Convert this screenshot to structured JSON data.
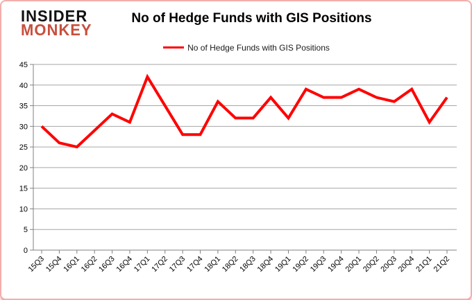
{
  "logo": {
    "line1": "INSIDER",
    "line2": "MONKEY"
  },
  "chart_data": {
    "type": "line",
    "title": "No of Hedge Funds with GIS Positions",
    "legend_label": "No of Hedge Funds with GIS Positions",
    "legend_position": "top",
    "categories": [
      "15Q3",
      "15Q4",
      "16Q1",
      "16Q2",
      "16Q3",
      "16Q4",
      "17Q1",
      "17Q2",
      "17Q3",
      "17Q4",
      "18Q1",
      "18Q2",
      "18Q3",
      "18Q4",
      "19Q1",
      "19Q2",
      "19Q3",
      "19Q4",
      "20Q1",
      "20Q2",
      "20Q3",
      "20Q4",
      "21Q1",
      "21Q2"
    ],
    "values": [
      30,
      26,
      25,
      29,
      33,
      31,
      42,
      35,
      28,
      28,
      36,
      32,
      32,
      37,
      32,
      39,
      37,
      37,
      39,
      37,
      36,
      39,
      31,
      37
    ],
    "ylim": [
      0,
      45
    ],
    "y_tick_step": 5,
    "grid": true,
    "line_color": "#ff0000",
    "gridline_color": "#a6a6a6",
    "axis_color": "#808080",
    "label_color": "#000000"
  }
}
